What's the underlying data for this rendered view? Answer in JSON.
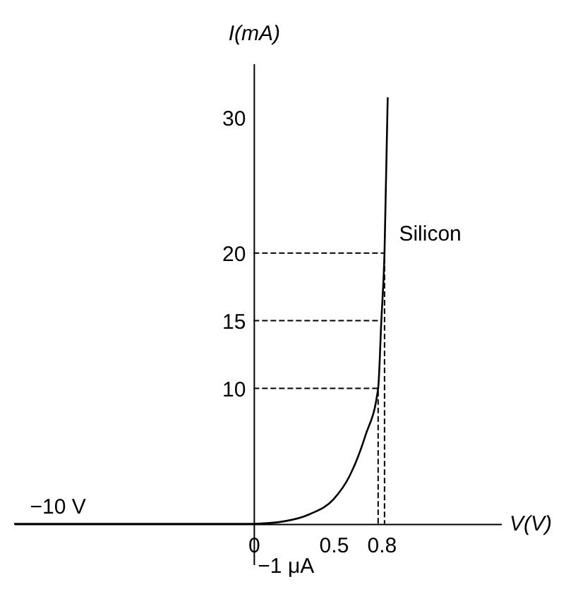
{
  "chart_data": {
    "type": "line",
    "xlabel": "V(V)",
    "ylabel": "I(mA)",
    "xlim": [
      -1.5,
      1.55
    ],
    "ylim": [
      -3,
      34
    ],
    "xticks": [
      0,
      0.5,
      0.8
    ],
    "yticks": [
      10,
      15,
      20,
      30
    ],
    "grid": false,
    "marker": "none",
    "annotations": [
      "−10 V",
      "−1 μA"
    ],
    "series": [
      {
        "name": "Silicon",
        "color": "#000000",
        "line_style": "solid",
        "x": [
          -1.5,
          -0.05,
          -0.02,
          0,
          0.2,
          0.35,
          0.5,
          0.6,
          0.7,
          0.78,
          0.8,
          0.82,
          0.84
        ],
        "values": [
          0,
          0,
          0,
          0,
          0.2,
          0.7,
          1.8,
          3.5,
          6.5,
          10,
          15,
          20,
          31.5
        ]
      },
      {
        "color": "#000000",
        "line_style": "dashed",
        "x": [
          0,
          0.78,
          0.78
        ],
        "values": [
          10,
          10,
          0
        ]
      },
      {
        "color": "#000000",
        "line_style": "dashed",
        "x": [
          0,
          0.8
        ],
        "values": [
          15,
          15
        ]
      },
      {
        "color": "#000000",
        "line_style": "dashed",
        "x": [
          0,
          0.82,
          0.82
        ],
        "values": [
          20,
          20,
          0
        ]
      }
    ]
  }
}
